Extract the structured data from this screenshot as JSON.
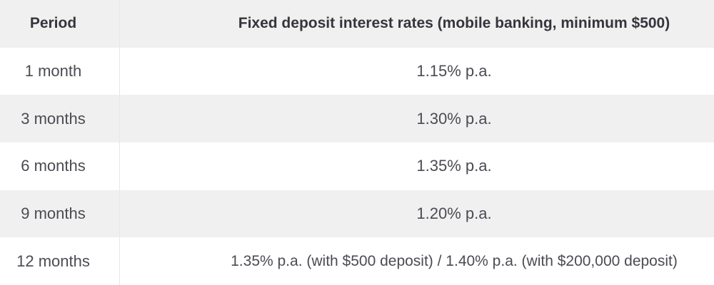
{
  "table": {
    "headers": {
      "period": "Period",
      "rate": "Fixed deposit interest rates (mobile banking, minimum $500)"
    },
    "rows": [
      {
        "period": "1 month",
        "rate": "1.15% p.a."
      },
      {
        "period": "3 months",
        "rate": "1.30% p.a."
      },
      {
        "period": "6 months",
        "rate": "1.35% p.a."
      },
      {
        "period": "9 months",
        "rate": "1.20% p.a."
      },
      {
        "period": "12 months",
        "rate": "1.35% p.a. (with $500 deposit) / 1.40% p.a. (with $200,000 deposit)"
      }
    ]
  },
  "chart_data": {
    "type": "table",
    "title": "Fixed deposit interest rates (mobile banking, minimum $500)",
    "columns": [
      "Period",
      "Fixed deposit interest rates (mobile banking, minimum $500)"
    ],
    "categories": [
      "1 month",
      "3 months",
      "6 months",
      "9 months",
      "12 months"
    ],
    "values_text": [
      "1.15% p.a.",
      "1.30% p.a.",
      "1.35% p.a.",
      "1.20% p.a.",
      "1.35% p.a. (with $500 deposit) / 1.40% p.a. (with $200,000 deposit)"
    ],
    "values_percent_pa": [
      1.15,
      1.3,
      1.35,
      1.2,
      null
    ],
    "12_months_detail": {
      "with_$500_deposit": 1.35,
      "with_$200000_deposit": 1.4
    },
    "layout": {
      "striped_rows": true,
      "header_row": true,
      "grid": "column-divider-only"
    }
  },
  "colors": {
    "header_bg": "#f0f0f0",
    "stripe_row_bg": "#f0f0f0",
    "plain_row_bg": "#ffffff",
    "column_divider": "#e7e7e7",
    "header_text": "#35353d",
    "body_text": "#4b4b53"
  }
}
